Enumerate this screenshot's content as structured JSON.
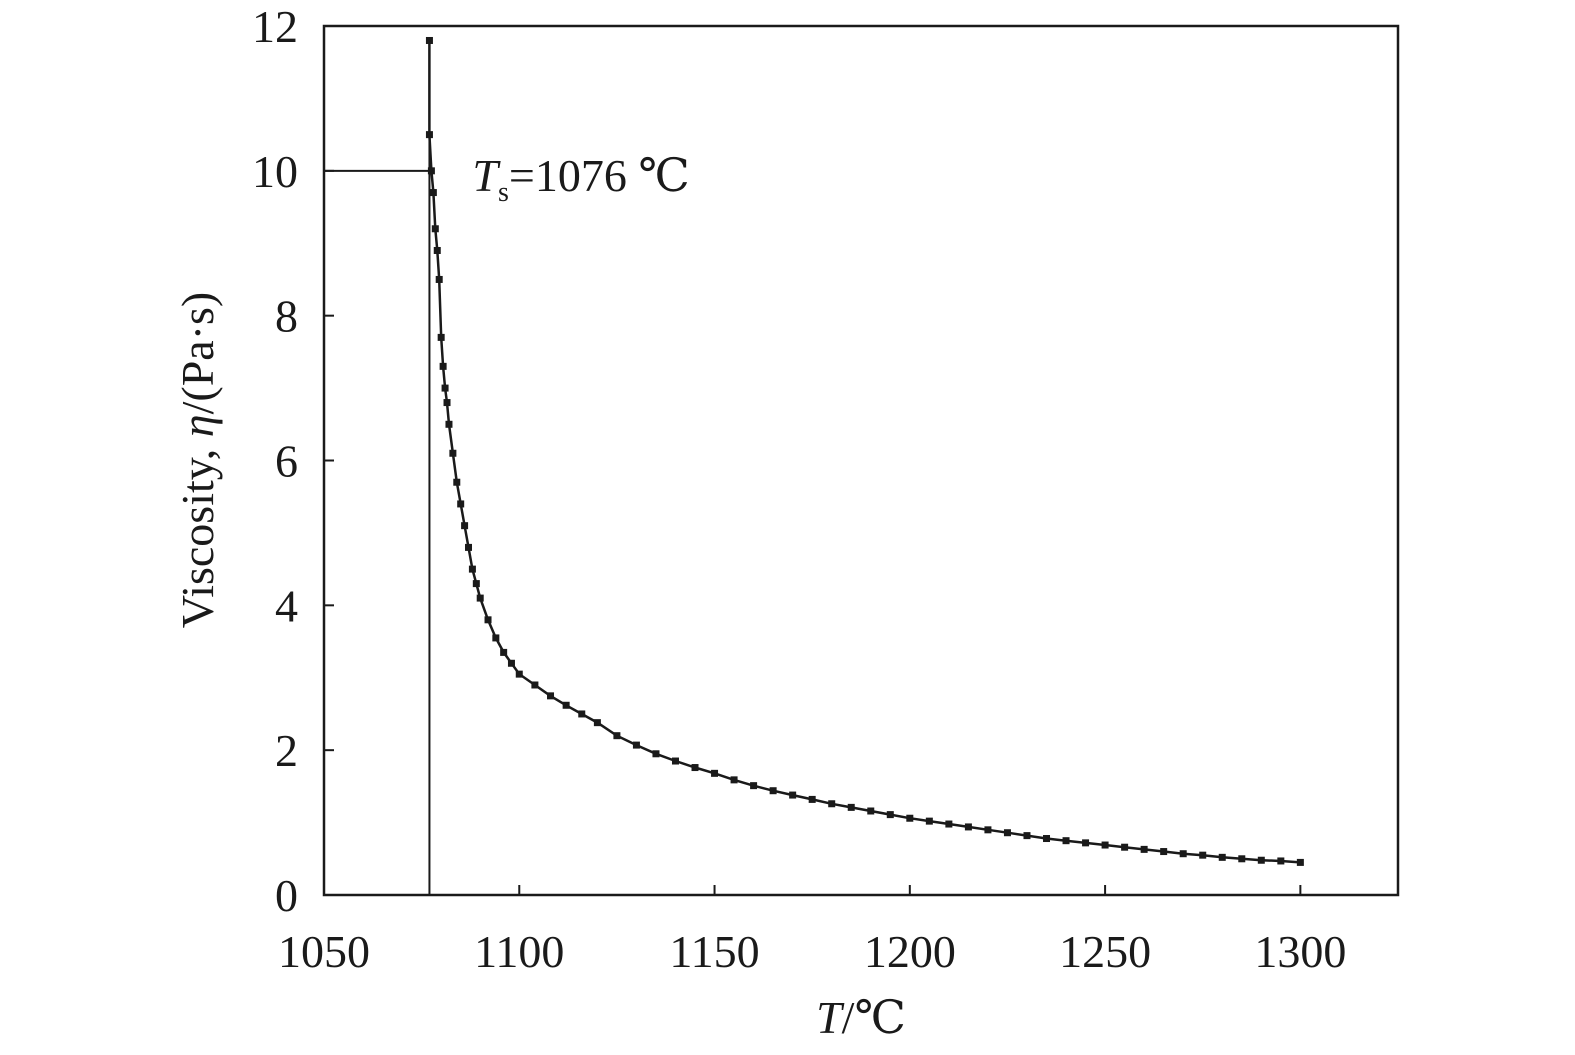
{
  "chart_data": {
    "type": "scatter",
    "title": "",
    "xlabel": {
      "var": "T",
      "rest": "/℃"
    },
    "ylabel": {
      "prefix": "Viscosity, ",
      "var": "η",
      "rest": "/(Pa·s)"
    },
    "xlim": [
      1050,
      1325
    ],
    "ylim": [
      0,
      12
    ],
    "x_ticks": [
      1050,
      1100,
      1150,
      1200,
      1250,
      1300
    ],
    "y_ticks": [
      0,
      2,
      4,
      6,
      8,
      10,
      12
    ],
    "grid": false,
    "marker": "square",
    "line_color": "#1a1a1a",
    "reference_line": {
      "x": 1077,
      "y": 10
    },
    "annotation": {
      "var": "T",
      "sub": "s",
      "text": "=1076 ℃",
      "x": 1088,
      "y": 10
    },
    "series": [
      {
        "x": [
          1077,
          1077,
          1077.5,
          1078,
          1078.5,
          1079,
          1079.5,
          1080,
          1080.5,
          1081,
          1081.5,
          1082,
          1083,
          1084,
          1085,
          1086,
          1087,
          1088,
          1089,
          1090,
          1092,
          1094,
          1096,
          1098,
          1100,
          1104,
          1108,
          1112,
          1116,
          1120,
          1125,
          1130,
          1135,
          1140,
          1145,
          1150,
          1155,
          1160,
          1165,
          1170,
          1175,
          1180,
          1185,
          1190,
          1195,
          1200,
          1205,
          1210,
          1215,
          1220,
          1225,
          1230,
          1235,
          1240,
          1245,
          1250,
          1255,
          1260,
          1265,
          1270,
          1275,
          1280,
          1285,
          1290,
          1295,
          1300
        ],
        "y": [
          11.8,
          10.5,
          10.0,
          9.7,
          9.2,
          8.9,
          8.5,
          7.7,
          7.3,
          7.0,
          6.8,
          6.5,
          6.1,
          5.7,
          5.4,
          5.1,
          4.8,
          4.5,
          4.3,
          4.1,
          3.8,
          3.55,
          3.35,
          3.2,
          3.05,
          2.9,
          2.75,
          2.62,
          2.5,
          2.38,
          2.2,
          2.07,
          1.95,
          1.85,
          1.76,
          1.68,
          1.59,
          1.51,
          1.44,
          1.38,
          1.32,
          1.26,
          1.21,
          1.16,
          1.11,
          1.06,
          1.02,
          0.98,
          0.94,
          0.9,
          0.86,
          0.82,
          0.78,
          0.75,
          0.72,
          0.69,
          0.66,
          0.63,
          0.6,
          0.57,
          0.55,
          0.52,
          0.5,
          0.48,
          0.47,
          0.45
        ]
      }
    ]
  }
}
